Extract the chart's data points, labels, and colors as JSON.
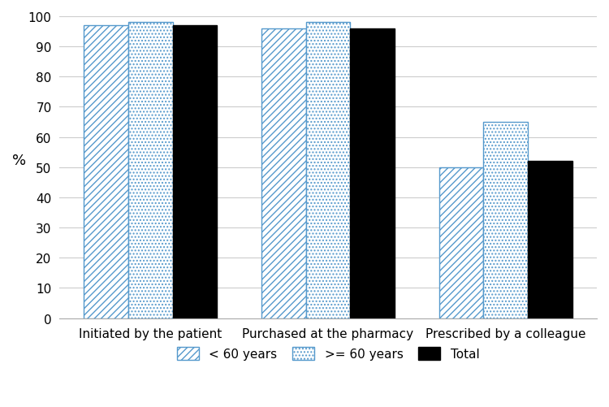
{
  "categories": [
    "Initiated by the patient",
    "Purchased at the pharmacy",
    "Prescribed by a colleague"
  ],
  "series": {
    "< 60 years": [
      97,
      96,
      50
    ],
    ">= 60 years": [
      98,
      98,
      65
    ],
    "Total": [
      97,
      96,
      52
    ]
  },
  "legend_labels": [
    "< 60 years",
    ">= 60 years",
    "Total"
  ],
  "fill_colors": [
    "white",
    "white",
    "black"
  ],
  "edge_colors": [
    "#5599cc",
    "#5599cc",
    "black"
  ],
  "hatch_colors": [
    "black",
    "black",
    "black"
  ],
  "hatch_patterns": [
    "////",
    "....",
    ""
  ],
  "ylabel": "%",
  "ylim": [
    0,
    100
  ],
  "yticks": [
    0,
    10,
    20,
    30,
    40,
    50,
    60,
    70,
    80,
    90,
    100
  ],
  "background_color": "#ffffff",
  "grid_color": "#cccccc",
  "bar_width": 0.25,
  "group_positions": [
    0.3,
    1.3,
    2.3
  ],
  "bar_offsets": [
    -0.25,
    0,
    0.25
  ]
}
